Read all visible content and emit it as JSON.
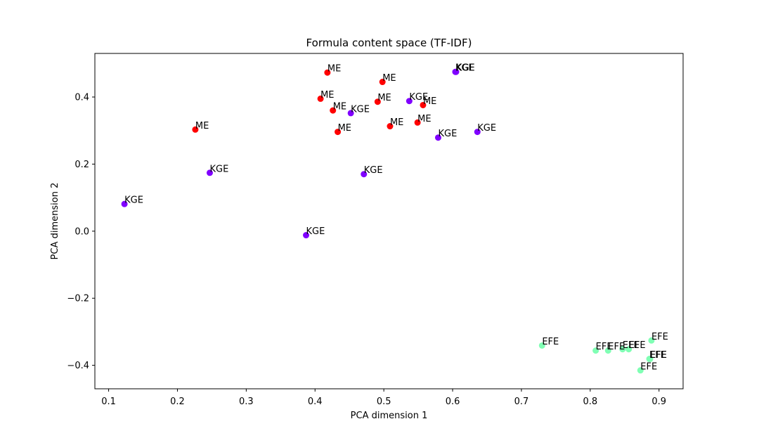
{
  "chart_data": {
    "type": "scatter",
    "title": "Formula content space (TF-IDF)",
    "xlabel": "PCA dimension 1",
    "ylabel": "PCA dimension 2",
    "xlim": [
      0.08,
      0.935
    ],
    "ylim": [
      -0.47,
      0.53
    ],
    "xticks": [
      0.1,
      0.2,
      0.3,
      0.4,
      0.5,
      0.6,
      0.7,
      0.8,
      0.9
    ],
    "xtick_labels": [
      "0.1",
      "0.2",
      "0.3",
      "0.4",
      "0.5",
      "0.6",
      "0.7",
      "0.8",
      "0.9"
    ],
    "yticks": [
      -0.4,
      -0.2,
      0.0,
      0.2,
      0.4
    ],
    "ytick_labels": [
      "−0.4",
      "−0.2",
      "0.0",
      "0.2",
      "0.4"
    ],
    "grid": false,
    "colors": {
      "ME": "#ff0000",
      "KGE": "#8000ff",
      "EFE": "#80ffb4"
    },
    "points": [
      {
        "x": 0.418,
        "y": 0.473,
        "label": "ME"
      },
      {
        "x": 0.498,
        "y": 0.445,
        "label": "ME"
      },
      {
        "x": 0.408,
        "y": 0.395,
        "label": "ME"
      },
      {
        "x": 0.491,
        "y": 0.386,
        "label": "ME"
      },
      {
        "x": 0.557,
        "y": 0.376,
        "label": "ME"
      },
      {
        "x": 0.426,
        "y": 0.36,
        "label": "ME"
      },
      {
        "x": 0.226,
        "y": 0.303,
        "label": "ME"
      },
      {
        "x": 0.433,
        "y": 0.296,
        "label": "ME"
      },
      {
        "x": 0.604,
        "y": 0.475,
        "label": "KGE"
      },
      {
        "x": 0.605,
        "y": 0.475,
        "label": "KGE"
      },
      {
        "x": 0.537,
        "y": 0.388,
        "label": "KGE"
      },
      {
        "x": 0.452,
        "y": 0.352,
        "label": "KGE"
      },
      {
        "x": 0.509,
        "y": 0.313,
        "label": "ME"
      },
      {
        "x": 0.549,
        "y": 0.324,
        "label": "ME"
      },
      {
        "x": 0.579,
        "y": 0.279,
        "label": "KGE"
      },
      {
        "x": 0.636,
        "y": 0.296,
        "label": "KGE"
      },
      {
        "x": 0.247,
        "y": 0.174,
        "label": "KGE"
      },
      {
        "x": 0.471,
        "y": 0.17,
        "label": "KGE"
      },
      {
        "x": 0.123,
        "y": 0.081,
        "label": "KGE"
      },
      {
        "x": 0.387,
        "y": -0.012,
        "label": "KGE"
      },
      {
        "x": 0.73,
        "y": -0.341,
        "label": "EFE"
      },
      {
        "x": 0.889,
        "y": -0.326,
        "label": "EFE"
      },
      {
        "x": 0.808,
        "y": -0.356,
        "label": "EFE"
      },
      {
        "x": 0.826,
        "y": -0.356,
        "label": "EFE"
      },
      {
        "x": 0.847,
        "y": -0.352,
        "label": "EFE"
      },
      {
        "x": 0.856,
        "y": -0.352,
        "label": "EFE"
      },
      {
        "x": 0.886,
        "y": -0.381,
        "label": "EFE"
      },
      {
        "x": 0.887,
        "y": -0.381,
        "label": "EFE"
      },
      {
        "x": 0.873,
        "y": -0.415,
        "label": "EFE"
      }
    ]
  }
}
